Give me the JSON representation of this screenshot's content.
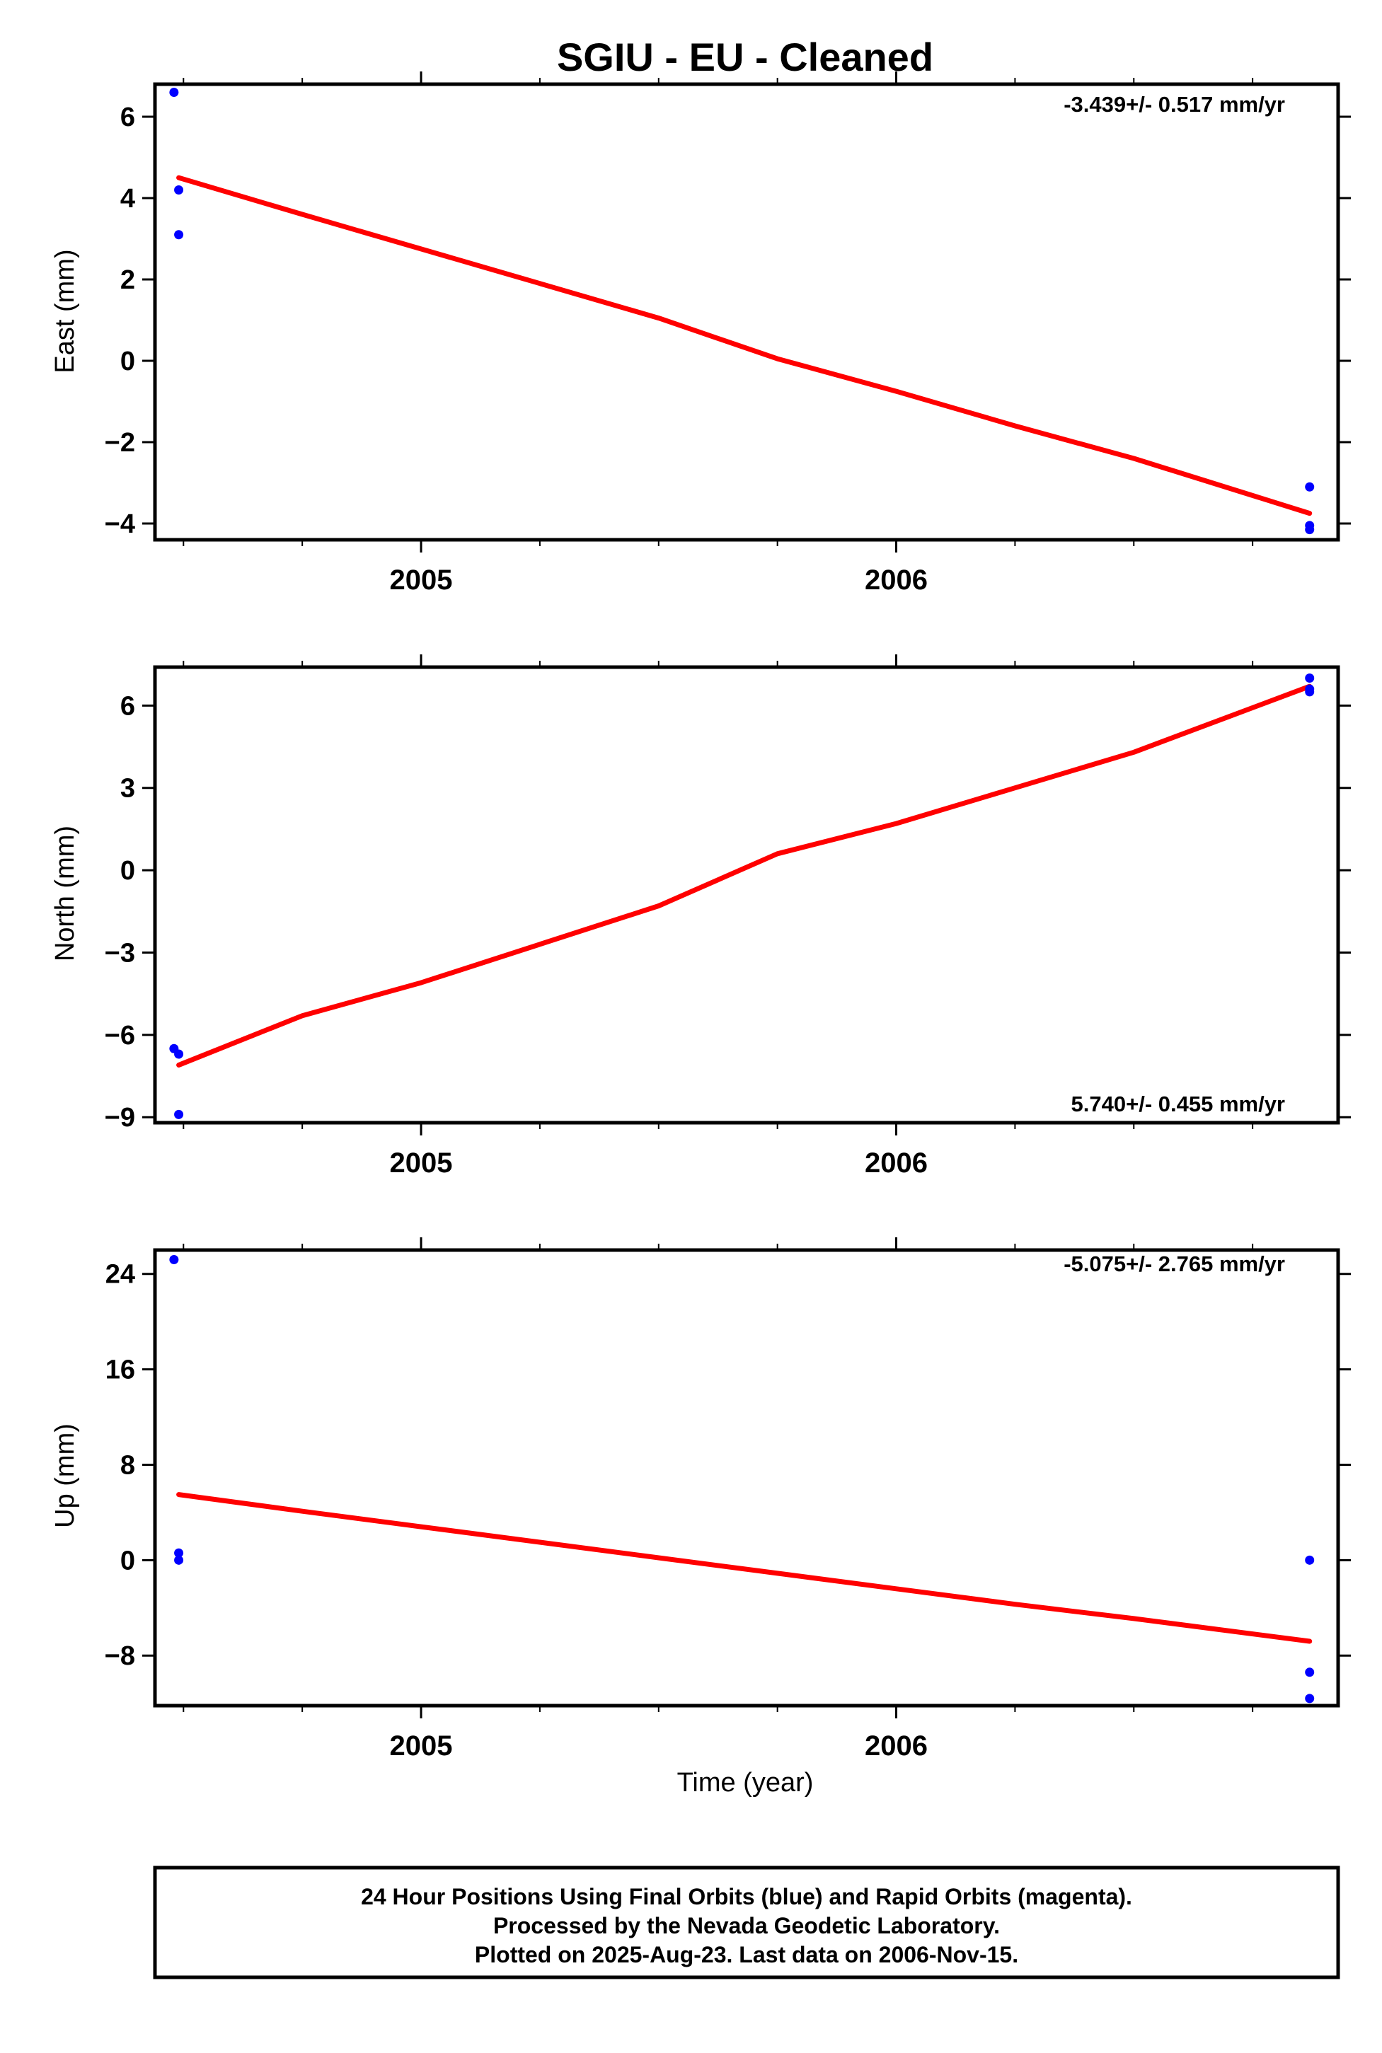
{
  "title": "SGIU  - EU - Cleaned",
  "xlabel": "Time (year)",
  "colors": {
    "points": "#0000ff",
    "fit": "#ff0000",
    "axes": "#000000"
  },
  "footer": {
    "line1": "24 Hour Positions Using Final Orbits (blue) and Rapid Orbits (magenta).",
    "line2": "Processed by the Nevada Geodetic Laboratory.",
    "line3": "Plotted on 2025-Aug-23. Last data on 2006-Nov-15."
  },
  "chart_data": [
    {
      "type": "scatter",
      "ylabel": "East (mm)",
      "rate_label": "-3.439+/- 0.517 mm/yr",
      "xlim": [
        2004.44,
        2006.93
      ],
      "ylim": [
        -4.4,
        6.8
      ],
      "x_ticks": [
        "2005",
        "2006"
      ],
      "y_ticks": [
        "6",
        "4",
        "2",
        "0",
        "−2",
        "−4"
      ],
      "y_tick_values": [
        6,
        4,
        2,
        0,
        -2,
        -4
      ],
      "points": [
        {
          "x": 2004.48,
          "y": 6.6
        },
        {
          "x": 2004.49,
          "y": 4.2
        },
        {
          "x": 2004.49,
          "y": 3.1
        },
        {
          "x": 2006.87,
          "y": -3.1
        },
        {
          "x": 2006.87,
          "y": -4.05
        },
        {
          "x": 2006.87,
          "y": -4.15
        }
      ],
      "fit": [
        {
          "x": 2004.49,
          "y": 4.5
        },
        {
          "x": 2004.75,
          "y": 3.6
        },
        {
          "x": 2005.0,
          "y": 2.75
        },
        {
          "x": 2005.25,
          "y": 1.9
        },
        {
          "x": 2005.5,
          "y": 1.05
        },
        {
          "x": 2005.75,
          "y": 0.05
        },
        {
          "x": 2006.0,
          "y": -0.75
        },
        {
          "x": 2006.25,
          "y": -1.6
        },
        {
          "x": 2006.5,
          "y": -2.4
        },
        {
          "x": 2006.87,
          "y": -3.75
        }
      ]
    },
    {
      "type": "scatter",
      "ylabel": "North (mm)",
      "rate_label": "5.740+/- 0.455 mm/yr",
      "xlim": [
        2004.44,
        2006.93
      ],
      "ylim": [
        -9.2,
        7.4
      ],
      "x_ticks": [
        "2005",
        "2006"
      ],
      "y_ticks": [
        "6",
        "3",
        "0",
        "−3",
        "−6",
        "−9"
      ],
      "y_tick_values": [
        6,
        3,
        0,
        -3,
        -6,
        -9
      ],
      "points": [
        {
          "x": 2004.48,
          "y": -6.5
        },
        {
          "x": 2004.49,
          "y": -6.7
        },
        {
          "x": 2004.49,
          "y": -8.9
        },
        {
          "x": 2006.87,
          "y": 7.0
        },
        {
          "x": 2006.87,
          "y": 6.6
        },
        {
          "x": 2006.87,
          "y": 6.5
        }
      ],
      "fit": [
        {
          "x": 2004.49,
          "y": -7.1
        },
        {
          "x": 2004.75,
          "y": -5.3
        },
        {
          "x": 2005.0,
          "y": -4.1
        },
        {
          "x": 2005.25,
          "y": -2.7
        },
        {
          "x": 2005.5,
          "y": -1.3
        },
        {
          "x": 2005.75,
          "y": 0.6
        },
        {
          "x": 2006.0,
          "y": 1.7
        },
        {
          "x": 2006.25,
          "y": 3.0
        },
        {
          "x": 2006.5,
          "y": 4.3
        },
        {
          "x": 2006.87,
          "y": 6.7
        }
      ]
    },
    {
      "type": "scatter",
      "ylabel": "Up (mm)",
      "rate_label": "-5.075+/- 2.765 mm/yr",
      "xlim": [
        2004.44,
        2006.93
      ],
      "ylim": [
        -12.2,
        26.0
      ],
      "x_ticks": [
        "2005",
        "2006"
      ],
      "y_ticks": [
        "24",
        "16",
        "8",
        "0",
        "−8"
      ],
      "y_tick_values": [
        24,
        16,
        8,
        0,
        -8
      ],
      "points": [
        {
          "x": 2004.48,
          "y": 25.2
        },
        {
          "x": 2004.49,
          "y": 0.6
        },
        {
          "x": 2004.49,
          "y": 0.0
        },
        {
          "x": 2006.87,
          "y": 0.0
        },
        {
          "x": 2006.87,
          "y": -9.4
        },
        {
          "x": 2006.87,
          "y": -11.6
        }
      ],
      "fit": [
        {
          "x": 2004.49,
          "y": 5.5
        },
        {
          "x": 2004.75,
          "y": 4.1
        },
        {
          "x": 2005.0,
          "y": 2.8
        },
        {
          "x": 2005.25,
          "y": 1.5
        },
        {
          "x": 2005.5,
          "y": 0.2
        },
        {
          "x": 2005.75,
          "y": -1.1
        },
        {
          "x": 2006.0,
          "y": -2.4
        },
        {
          "x": 2006.25,
          "y": -3.7
        },
        {
          "x": 2006.5,
          "y": -4.9
        },
        {
          "x": 2006.87,
          "y": -6.8
        }
      ]
    }
  ]
}
